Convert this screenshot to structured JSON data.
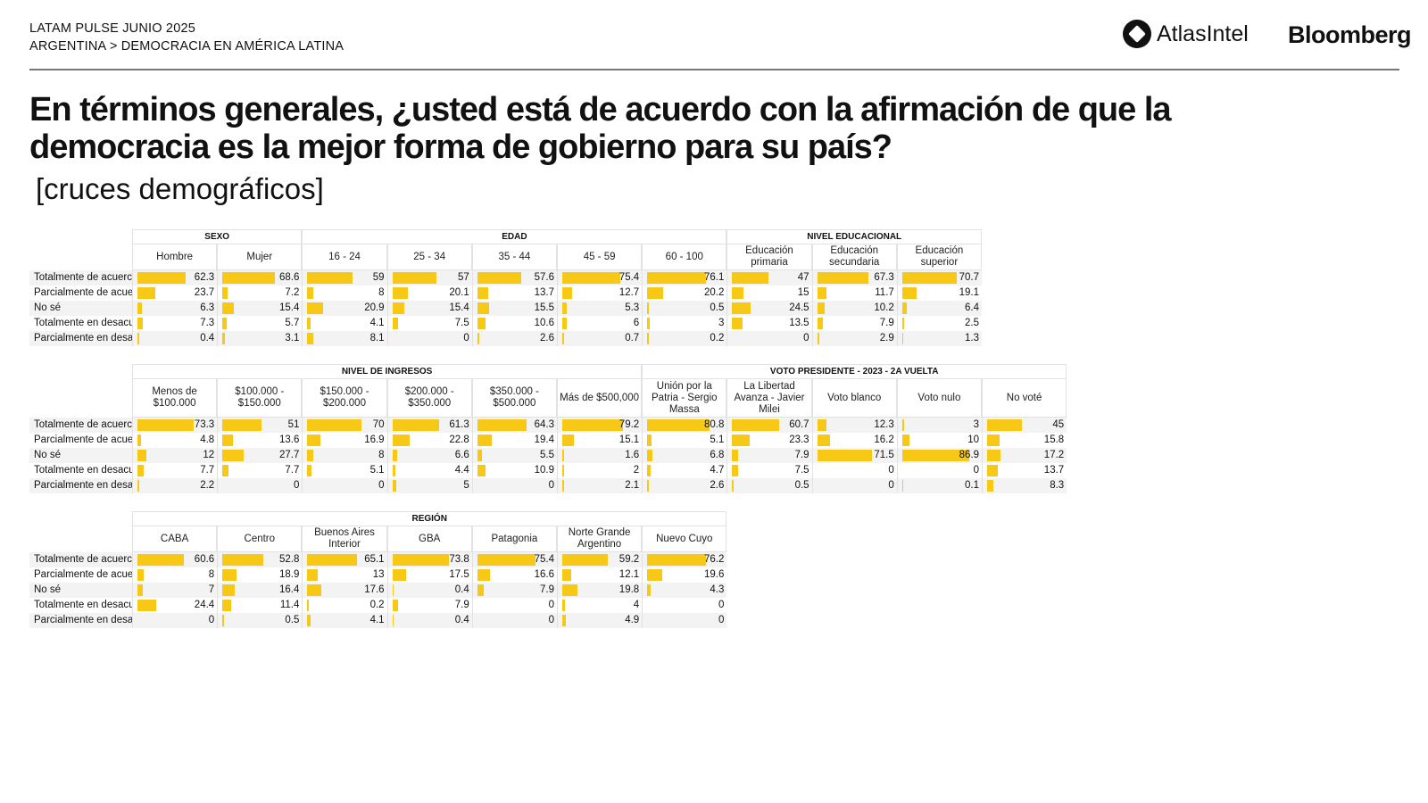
{
  "header": {
    "line1": "LATAM PULSE JUNIO 2025",
    "line2": "ARGENTINA > DEMOCRACIA EN AMÉRICA LATINA",
    "logo1": "AtlasIntel",
    "logo2": "Bloomberg"
  },
  "title": "En términos generales, ¿usted está de acuerdo con la afirmación de que la democracia es la mejor forma de gobierno para su país?",
  "subtitle": "[cruces demográficos]",
  "colors": {
    "bar": "#f7c815"
  },
  "chart_data": [
    {
      "type": "table",
      "row_labels": [
        "Totalmente de acuerc",
        "Parcialmente de acue",
        "No sé",
        "Totalmente en desacu",
        "Parcialmente en desa"
      ],
      "groups": [
        {
          "name": "SEXO",
          "span": 2
        },
        {
          "name": "EDAD",
          "span": 5
        },
        {
          "name": "NIVEL EDUCACIONAL",
          "span": 3
        }
      ],
      "columns": [
        "Hombre",
        "Mujer",
        "16 - 24",
        "25 - 34",
        "35 - 44",
        "45 - 59",
        "60 - 100",
        "Educación primaria",
        "Educación secundaria",
        "Educación superior"
      ],
      "values": [
        [
          62.3,
          68.6,
          59,
          57,
          57.6,
          75.4,
          76.1,
          47,
          67.3,
          70.7
        ],
        [
          23.7,
          7.2,
          8,
          20.1,
          13.7,
          12.7,
          20.2,
          15,
          11.7,
          19.1
        ],
        [
          6.3,
          15.4,
          20.9,
          15.4,
          15.5,
          5.3,
          0.5,
          24.5,
          10.2,
          6.4
        ],
        [
          7.3,
          5.7,
          4.1,
          7.5,
          10.6,
          6,
          3,
          13.5,
          7.9,
          2.5
        ],
        [
          0.4,
          3.1,
          8.1,
          0,
          2.6,
          0.7,
          0.2,
          0,
          2.9,
          1.3
        ]
      ]
    },
    {
      "type": "table",
      "row_labels": [
        "Totalmente de acuerc",
        "Parcialmente de acue",
        "No sé",
        "Totalmente en desacu",
        "Parcialmente en desa"
      ],
      "groups": [
        {
          "name": "NIVEL DE INGRESOS",
          "span": 6
        },
        {
          "name": "VOTO PRESIDENTE - 2023 - 2A VUELTA",
          "span": 5
        }
      ],
      "columns": [
        "Menos de $100.000",
        "$100.000 - $150.000",
        "$150.000 - $200.000",
        "$200.000 - $350.000",
        "$350.000 - $500.000",
        "Más de $500,000",
        "Unión por la Patria - Sergio Massa",
        "La Libertad Avanza - Javier Milei",
        "Voto blanco",
        "Voto nulo",
        "No voté"
      ],
      "values": [
        [
          73.3,
          51,
          70,
          61.3,
          64.3,
          79.2,
          80.8,
          60.7,
          12.3,
          3,
          45
        ],
        [
          4.8,
          13.6,
          16.9,
          22.8,
          19.4,
          15.1,
          5.1,
          23.3,
          16.2,
          10,
          15.8
        ],
        [
          12,
          27.7,
          8,
          6.6,
          5.5,
          1.6,
          6.8,
          7.9,
          71.5,
          86.9,
          17.2
        ],
        [
          7.7,
          7.7,
          5.1,
          4.4,
          10.9,
          2,
          4.7,
          7.5,
          0,
          0,
          13.7
        ],
        [
          2.2,
          0,
          0,
          5,
          0,
          2.1,
          2.6,
          0.5,
          0,
          0.1,
          8.3
        ]
      ]
    },
    {
      "type": "table",
      "row_labels": [
        "Totalmente de acuerc",
        "Parcialmente de acue",
        "No sé",
        "Totalmente en desacu",
        "Parcialmente en desa"
      ],
      "groups": [
        {
          "name": "REGIÓN",
          "span": 7
        }
      ],
      "columns": [
        "CABA",
        "Centro",
        "Buenos Aires Interior",
        "GBA",
        "Patagonia",
        "Norte Grande Argentino",
        "Nuevo Cuyo"
      ],
      "values": [
        [
          60.6,
          52.8,
          65.1,
          73.8,
          75.4,
          59.2,
          76.2
        ],
        [
          8,
          18.9,
          13,
          17.5,
          16.6,
          12.1,
          19.6
        ],
        [
          7,
          16.4,
          17.6,
          0.4,
          7.9,
          19.8,
          4.3
        ],
        [
          24.4,
          11.4,
          0.2,
          7.9,
          0,
          4,
          0
        ],
        [
          0,
          0.5,
          4.1,
          0.4,
          0,
          4.9,
          0
        ]
      ]
    }
  ]
}
